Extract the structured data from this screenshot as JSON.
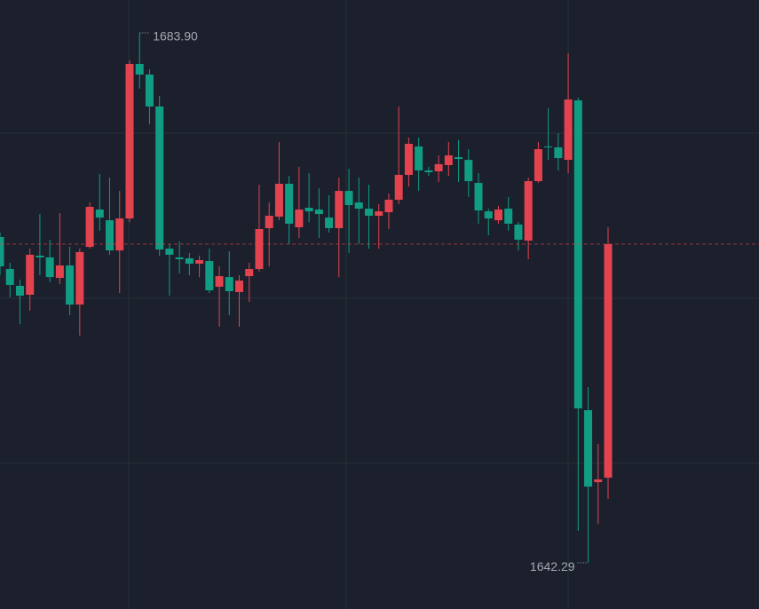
{
  "chart_data": {
    "type": "candlestick",
    "high_label": "1683.90",
    "low_label": "1642.29",
    "up_color": "#e3434f",
    "down_color": "#109d83",
    "ylim": [
      1638.67,
      1686.48
    ],
    "open": [
      1667.87,
      1665.36,
      1664.04,
      1663.34,
      1666.41,
      1666.27,
      1664.66,
      1665.64,
      1662.57,
      1667.1,
      1670.03,
      1669.19,
      1666.82,
      1669.33,
      1681.46,
      1680.63,
      1678.12,
      1666.96,
      1666.27,
      1666.2,
      1665.78,
      1665.99,
      1663.97,
      1664.73,
      1663.55,
      1664.8,
      1665.36,
      1668.57,
      1669.47,
      1672.05,
      1668.64,
      1670.17,
      1670.03,
      1669.4,
      1668.57,
      1671.49,
      1670.59,
      1670.1,
      1669.54,
      1669.82,
      1670.8,
      1672.75,
      1674.98,
      1673.1,
      1673.03,
      1673.52,
      1674.14,
      1673.93,
      1672.12,
      1669.89,
      1669.19,
      1670.1,
      1668.85,
      1667.59,
      1672.26,
      1674.98,
      1674.91,
      1673.93,
      1678.6,
      1654.28,
      1648.63,
      1648.98
    ],
    "high": [
      1668.22,
      1665.85,
      1664.52,
      1666.96,
      1669.68,
      1667.66,
      1669.75,
      1667.1,
      1666.96,
      1670.59,
      1672.82,
      1672.54,
      1671.49,
      1681.74,
      1683.9,
      1681.04,
      1678.95,
      1667.31,
      1667.52,
      1666.62,
      1666.41,
      1666.96,
      1665.57,
      1666.75,
      1664.87,
      1665.85,
      1671.98,
      1670.59,
      1675.33,
      1672.68,
      1673.38,
      1672.89,
      1671.7,
      1671.15,
      1672.54,
      1673.24,
      1672.54,
      1671.98,
      1670.45,
      1671.29,
      1678.12,
      1675.68,
      1675.68,
      1673.38,
      1674.28,
      1675.33,
      1675.47,
      1674.77,
      1672.89,
      1670.1,
      1670.31,
      1671.01,
      1669.05,
      1672.54,
      1675.33,
      1677.98,
      1676.02,
      1682.3,
      1678.81,
      1656.09,
      1651.63,
      1668.64
    ],
    "low": [
      1664.87,
      1663.13,
      1661.04,
      1662.08,
      1664.87,
      1664.32,
      1664.18,
      1661.74,
      1660.13,
      1666.96,
      1668.36,
      1666.48,
      1663.48,
      1669.05,
      1679.51,
      1676.72,
      1666.41,
      1663.27,
      1665.01,
      1664.87,
      1664.73,
      1663.48,
      1660.83,
      1661.74,
      1660.83,
      1662.78,
      1665.15,
      1665.57,
      1669.19,
      1667.31,
      1667.8,
      1669.05,
      1667.8,
      1668.22,
      1664.73,
      1666.62,
      1667.31,
      1666.96,
      1666.96,
      1668.5,
      1670.45,
      1671.84,
      1671.49,
      1672.68,
      1672.19,
      1672.68,
      1672.19,
      1671.01,
      1668.92,
      1668.01,
      1668.92,
      1668.36,
      1666.82,
      1666.13,
      1672.12,
      1673.93,
      1673.1,
      1672.89,
      1644.8,
      1642.29,
      1645.36,
      1647.31
    ],
    "close": [
      1665.57,
      1664.11,
      1663.27,
      1666.48,
      1666.27,
      1664.73,
      1665.64,
      1662.57,
      1666.69,
      1670.24,
      1669.4,
      1666.82,
      1669.33,
      1681.46,
      1680.63,
      1678.12,
      1666.89,
      1666.48,
      1666.13,
      1665.78,
      1666.06,
      1663.69,
      1664.8,
      1663.62,
      1664.45,
      1665.36,
      1668.5,
      1669.54,
      1672.05,
      1668.92,
      1670.03,
      1669.89,
      1669.68,
      1668.57,
      1671.49,
      1670.38,
      1670.1,
      1669.54,
      1669.89,
      1670.8,
      1672.75,
      1675.19,
      1673.1,
      1672.96,
      1673.59,
      1674.28,
      1674.0,
      1672.26,
      1669.96,
      1669.33,
      1670.03,
      1668.92,
      1667.66,
      1672.26,
      1674.77,
      1674.91,
      1674.07,
      1678.67,
      1654.42,
      1648.28,
      1648.84,
      1667.31
    ]
  }
}
